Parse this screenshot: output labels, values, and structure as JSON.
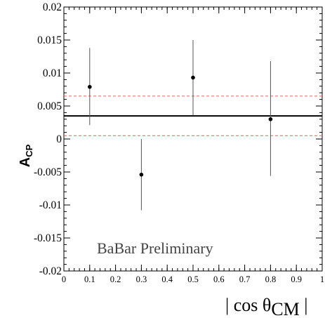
{
  "chart_data": {
    "type": "scatter",
    "xlim": [
      0,
      1
    ],
    "ylim": [
      -0.02,
      0.02
    ],
    "x_ticks": [
      0,
      0.1,
      0.2,
      0.3,
      0.4,
      0.5,
      0.6,
      0.7,
      0.8,
      0.9,
      1
    ],
    "x_tick_labels": [
      "0",
      "0.1",
      "0.2",
      "0.3",
      "0.4",
      "0.5",
      "0.6",
      "0.7",
      "0.8",
      "0.9",
      "1"
    ],
    "y_ticks": [
      -0.02,
      -0.015,
      -0.01,
      -0.005,
      0,
      0.005,
      0.01,
      0.015,
      0.02
    ],
    "y_tick_labels": [
      "-0.02",
      "-0.015",
      "-0.01",
      "-0.005",
      "0",
      "0.005",
      "0.01",
      "0.015",
      "0.02"
    ],
    "xlabel": "| cos θCM |",
    "xlabel_parts": {
      "main": "| cos θ",
      "sub": "CM",
      "close": " |"
    },
    "ylabel": "ACP",
    "ylabel_parts": {
      "main": "A",
      "sub": "CP"
    },
    "annotation": "BaBar Preliminary",
    "grid": false,
    "points": [
      {
        "x": 0.1,
        "y": 0.0079,
        "err_low": 0.0021,
        "err_high": 0.0138
      },
      {
        "x": 0.3,
        "y": -0.0054,
        "err_low": -0.0108,
        "err_high": 0.0
      },
      {
        "x": 0.5,
        "y": 0.0093,
        "err_low": 0.0036,
        "err_high": 0.015
      },
      {
        "x": 0.8,
        "y": 0.003,
        "err_low": -0.0056,
        "err_high": 0.0118
      }
    ],
    "reference_lines": [
      {
        "y": 0.0035,
        "style": "solid",
        "color": "#000000"
      },
      {
        "y": 0.0065,
        "style": "dashed",
        "color": "#e06060"
      },
      {
        "y": 0.0005,
        "style": "dashed",
        "color": "#e06060"
      }
    ]
  }
}
